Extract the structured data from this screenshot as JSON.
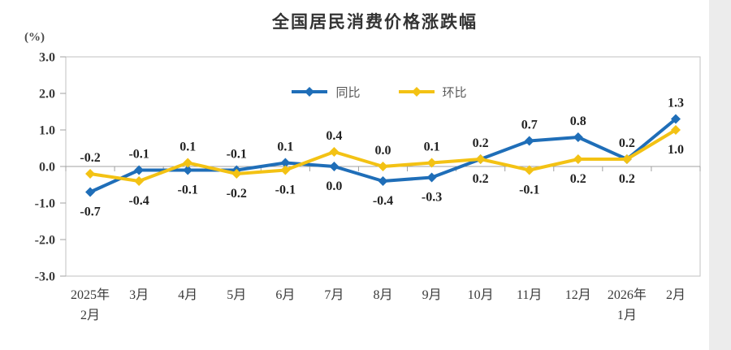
{
  "title": "全国居民消费价格涨跌幅",
  "unit": "(%)",
  "chart_data": {
    "type": "line",
    "title": "全国居民消费价格涨跌幅",
    "ylabel": "(%)",
    "xlabel": "",
    "ylim": [
      -3.0,
      3.0
    ],
    "ytick_step": 1.0,
    "yticks": [
      3.0,
      2.0,
      1.0,
      0.0,
      -1.0,
      -2.0,
      -3.0
    ],
    "grid": false,
    "legend_position": "top-center",
    "marker": "diamond",
    "categories": [
      "2025年\n2月",
      "3月",
      "4月",
      "5月",
      "6月",
      "7月",
      "8月",
      "9月",
      "10月",
      "11月",
      "12月",
      "2026年\n1月",
      "2月"
    ],
    "series": [
      {
        "name": "同比",
        "id": "yoy",
        "color": "#1F6EB8",
        "values": [
          -0.7,
          -0.1,
          -0.1,
          -0.1,
          0.1,
          0.0,
          -0.4,
          -0.3,
          0.2,
          0.7,
          0.8,
          0.2,
          1.3
        ]
      },
      {
        "name": "环比",
        "id": "mom",
        "color": "#F3C214",
        "values": [
          -0.2,
          -0.4,
          0.1,
          -0.2,
          -0.1,
          0.4,
          0.0,
          0.1,
          0.2,
          -0.1,
          0.2,
          0.2,
          1.0
        ]
      }
    ],
    "colors": {
      "axis_line": "#c0c0c0",
      "zero_line": "#a0a0a0",
      "tick": "#a0a0a0",
      "tick_label": "#3a3a3a",
      "data_label": "#222222",
      "right_gutter": "#ececec"
    }
  }
}
